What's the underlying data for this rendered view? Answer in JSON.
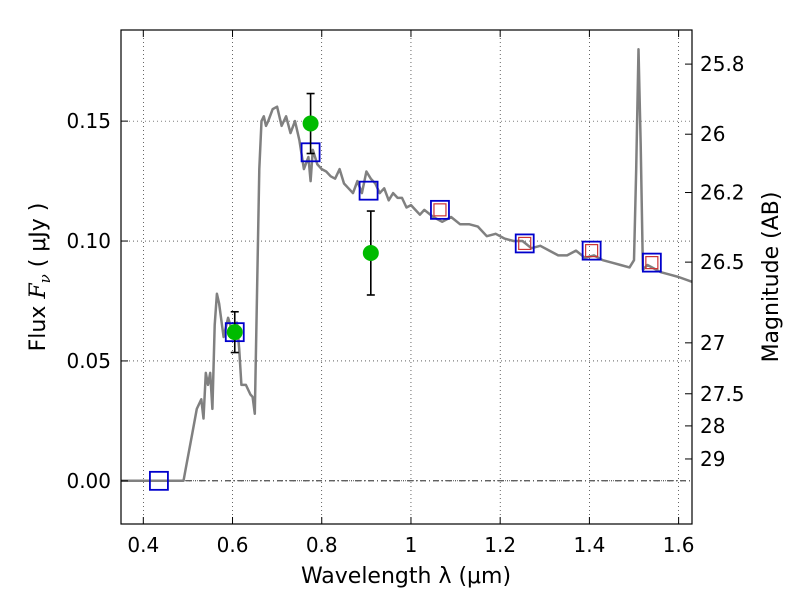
{
  "chart_data": {
    "type": "scatter",
    "xlabel": "Wavelength  λ (μm)",
    "ylabel": "Flux  F_ν  ( μJy )",
    "ylabel_parts": {
      "pre": "Flux  ",
      "sym": "F",
      "sub": "ν",
      "post": "  ( μJy )"
    },
    "y2label": "Magnitude (AB)",
    "xlim": [
      0.35,
      1.63
    ],
    "ylim": [
      -0.018,
      0.188
    ],
    "grid": true,
    "x_ticks": [
      {
        "value": 0.4,
        "label": "0.4"
      },
      {
        "value": 0.6,
        "label": "0.6"
      },
      {
        "value": 0.8,
        "label": "0.8"
      },
      {
        "value": 1.0,
        "label": "1"
      },
      {
        "value": 1.2,
        "label": "1.2"
      },
      {
        "value": 1.4,
        "label": "1.4"
      },
      {
        "value": 1.6,
        "label": "1.6"
      }
    ],
    "y_ticks": [
      {
        "value": 0.0,
        "label": "0.00"
      },
      {
        "value": 0.05,
        "label": "0.05"
      },
      {
        "value": 0.1,
        "label": "0.10"
      },
      {
        "value": 0.15,
        "label": "0.15"
      }
    ],
    "y2_ticks": [
      {
        "value": 25.8,
        "label": "25.8"
      },
      {
        "value": 26.0,
        "label": "26"
      },
      {
        "value": 26.2,
        "label": "26.2"
      },
      {
        "value": 26.5,
        "label": "26.5"
      },
      {
        "value": 27.0,
        "label": "27"
      },
      {
        "value": 27.5,
        "label": "27.5"
      },
      {
        "value": 28.0,
        "label": "28"
      },
      {
        "value": 29.0,
        "label": "29"
      }
    ],
    "colors": {
      "model": "#808080",
      "observed": "#00bb00",
      "synthetic": "#0000cc",
      "band": "#cc3333",
      "errorbar": "#000000"
    },
    "model_spectrum": {
      "x": [
        0.35,
        0.49,
        0.495,
        0.51,
        0.52,
        0.53,
        0.535,
        0.54,
        0.545,
        0.55,
        0.555,
        0.56,
        0.565,
        0.57,
        0.58,
        0.59,
        0.6,
        0.61,
        0.615,
        0.62,
        0.63,
        0.64,
        0.645,
        0.65,
        0.655,
        0.66,
        0.665,
        0.67,
        0.675,
        0.68,
        0.69,
        0.7,
        0.71,
        0.72,
        0.73,
        0.74,
        0.75,
        0.76,
        0.77,
        0.775,
        0.78,
        0.79,
        0.8,
        0.81,
        0.82,
        0.83,
        0.84,
        0.85,
        0.86,
        0.87,
        0.88,
        0.89,
        0.9,
        0.91,
        0.92,
        0.93,
        0.94,
        0.95,
        0.96,
        0.97,
        0.98,
        0.99,
        1.0,
        1.01,
        1.02,
        1.03,
        1.05,
        1.07,
        1.09,
        1.11,
        1.13,
        1.15,
        1.17,
        1.19,
        1.21,
        1.23,
        1.25,
        1.27,
        1.29,
        1.31,
        1.33,
        1.35,
        1.37,
        1.39,
        1.41,
        1.43,
        1.45,
        1.47,
        1.49,
        1.5,
        1.505,
        1.51,
        1.515,
        1.52,
        1.53,
        1.54,
        1.56,
        1.58,
        1.6,
        1.63
      ],
      "y": [
        0.0,
        0.0,
        0.005,
        0.02,
        0.03,
        0.034,
        0.026,
        0.045,
        0.04,
        0.045,
        0.03,
        0.065,
        0.078,
        0.074,
        0.06,
        0.068,
        0.062,
        0.066,
        0.055,
        0.04,
        0.04,
        0.036,
        0.035,
        0.028,
        0.08,
        0.13,
        0.15,
        0.152,
        0.148,
        0.15,
        0.155,
        0.156,
        0.148,
        0.152,
        0.145,
        0.15,
        0.142,
        0.13,
        0.135,
        0.125,
        0.138,
        0.132,
        0.13,
        0.129,
        0.127,
        0.126,
        0.13,
        0.124,
        0.122,
        0.12,
        0.125,
        0.12,
        0.129,
        0.126,
        0.124,
        0.12,
        0.122,
        0.117,
        0.12,
        0.118,
        0.118,
        0.114,
        0.115,
        0.113,
        0.111,
        0.113,
        0.11,
        0.108,
        0.11,
        0.107,
        0.107,
        0.106,
        0.102,
        0.103,
        0.101,
        0.1,
        0.1,
        0.097,
        0.098,
        0.096,
        0.094,
        0.094,
        0.096,
        0.093,
        0.094,
        0.092,
        0.091,
        0.09,
        0.089,
        0.092,
        0.13,
        0.18,
        0.14,
        0.088,
        0.09,
        0.089,
        0.087,
        0.086,
        0.085,
        0.083
      ]
    },
    "synthetic_points": [
      {
        "x": 0.435,
        "y": 0.0
      },
      {
        "x": 0.605,
        "y": 0.062
      },
      {
        "x": 0.775,
        "y": 0.137
      },
      {
        "x": 0.905,
        "y": 0.121
      },
      {
        "x": 1.065,
        "y": 0.113
      },
      {
        "x": 1.255,
        "y": 0.099
      },
      {
        "x": 1.405,
        "y": 0.096
      },
      {
        "x": 1.54,
        "y": 0.091
      }
    ],
    "band_points": [
      {
        "x": 1.065,
        "y": 0.113
      },
      {
        "x": 1.255,
        "y": 0.099
      },
      {
        "x": 1.405,
        "y": 0.096
      },
      {
        "x": 1.54,
        "y": 0.091
      }
    ],
    "observed_points": [
      {
        "x": 0.605,
        "y": 0.062,
        "yerr": 0.0085
      },
      {
        "x": 0.775,
        "y": 0.149,
        "yerr": 0.0125
      },
      {
        "x": 0.91,
        "y": 0.095,
        "yerr": 0.0175
      }
    ]
  }
}
